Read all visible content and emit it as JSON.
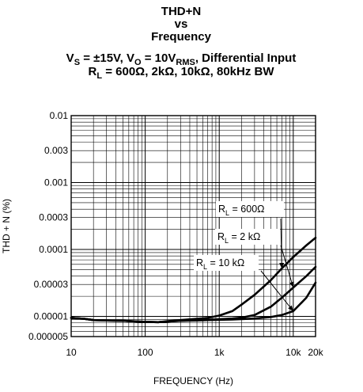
{
  "chart_data": {
    "type": "line",
    "title": [
      "THD+N",
      "vs",
      "Frequency"
    ],
    "subtitle": [
      [
        {
          "t": "V"
        },
        {
          "t": "S",
          "sub": true
        },
        {
          "t": " = ±15V, V"
        },
        {
          "t": "O",
          "sub": true
        },
        {
          "t": " = 10V"
        },
        {
          "t": "RMS",
          "sub": true
        },
        {
          "t": ", Differential Input"
        }
      ],
      [
        {
          "t": "R"
        },
        {
          "t": "L",
          "sub": true
        },
        {
          "t": " = 600Ω, 2kΩ, 10kΩ, 80kHz BW"
        }
      ]
    ],
    "xlabel": "FREQUENCY (Hz)",
    "ylabel": "THD + N (%)",
    "x_scale": "log",
    "y_scale": "log",
    "xlim": [
      10,
      20000
    ],
    "ylim": [
      5e-06,
      0.01
    ],
    "grid": true,
    "x_ticks": [
      {
        "value": 10,
        "label": "10"
      },
      {
        "value": 100,
        "label": "100"
      },
      {
        "value": 1000,
        "label": "1k"
      },
      {
        "value": 10000,
        "label": "10k"
      },
      {
        "value": 20000,
        "label": "20k"
      }
    ],
    "y_ticks": [
      {
        "value": 0.01,
        "label": "0.01"
      },
      {
        "value": 0.003,
        "label": "0.003"
      },
      {
        "value": 0.001,
        "label": "0.001"
      },
      {
        "value": 0.0003,
        "label": "0.0003"
      },
      {
        "value": 0.0001,
        "label": "0.0001"
      },
      {
        "value": 3e-05,
        "label": "0.00003"
      },
      {
        "value": 1e-05,
        "label": "0.00001"
      },
      {
        "value": 5e-06,
        "label": "0.000005"
      }
    ],
    "series": [
      {
        "name": "RL = 600Ω",
        "x": [
          10,
          15,
          20,
          30,
          50,
          80,
          100,
          150,
          200,
          300,
          500,
          700,
          1000,
          1500,
          2000,
          3000,
          5000,
          7000,
          10000,
          15000,
          20000
        ],
        "y": [
          9.5e-06,
          9.2e-06,
          8.8e-06,
          8.7e-06,
          8.6e-06,
          8.4e-06,
          8.3e-06,
          8.2e-06,
          8.5e-06,
          8.8e-06,
          9.2e-06,
          9.5e-06,
          1.03e-05,
          1.2e-05,
          1.5e-05,
          2.1e-05,
          3.5e-05,
          5.2e-05,
          7.7e-05,
          0.000115,
          0.00015
        ]
      },
      {
        "name": "RL = 2 kΩ",
        "x": [
          10,
          15,
          20,
          30,
          50,
          80,
          100,
          150,
          200,
          300,
          500,
          700,
          1000,
          1500,
          2000,
          3000,
          5000,
          7000,
          10000,
          15000,
          20000
        ],
        "y": [
          9.5e-06,
          9.2e-06,
          8.8e-06,
          8.7e-06,
          8.6e-06,
          8.4e-06,
          8.3e-06,
          8.2e-06,
          8.4e-06,
          8.6e-06,
          8.8e-06,
          8.9e-06,
          9.1e-06,
          9.3e-06,
          9.6e-06,
          1.05e-05,
          1.4e-05,
          1.9e-05,
          2.7e-05,
          4e-05,
          5.5e-05
        ]
      },
      {
        "name": "RL = 10 kΩ",
        "x": [
          10,
          15,
          20,
          30,
          50,
          80,
          100,
          150,
          200,
          300,
          500,
          700,
          1000,
          1500,
          2000,
          3000,
          5000,
          7000,
          10000,
          15000,
          20000
        ],
        "y": [
          9.5e-06,
          9.2e-06,
          8.8e-06,
          8.7e-06,
          8.6e-06,
          8.4e-06,
          8.3e-06,
          8.2e-06,
          8.4e-06,
          8.6e-06,
          8.7e-06,
          8.8e-06,
          8.9e-06,
          9e-06,
          9.1e-06,
          9.3e-06,
          9.8e-06,
          1.05e-05,
          1.2e-05,
          1.9e-05,
          3.2e-05
        ]
      }
    ],
    "annotations": [
      {
        "parts": [
          {
            "t": "R"
          },
          {
            "t": "L",
            "sub": true
          },
          {
            "t": " = 600Ω"
          }
        ],
        "series": 0,
        "points_to": [
          7000,
          5.2e-05
        ]
      },
      {
        "parts": [
          {
            "t": "R"
          },
          {
            "t": "L",
            "sub": true
          },
          {
            "t": " = 2 kΩ"
          }
        ],
        "series": 1,
        "points_to": [
          10000,
          2.7e-05
        ]
      },
      {
        "parts": [
          {
            "t": "R"
          },
          {
            "t": "L",
            "sub": true
          },
          {
            "t": " = 10 kΩ"
          }
        ],
        "series": 2,
        "points_to": [
          10000,
          1.2e-05
        ]
      }
    ]
  }
}
